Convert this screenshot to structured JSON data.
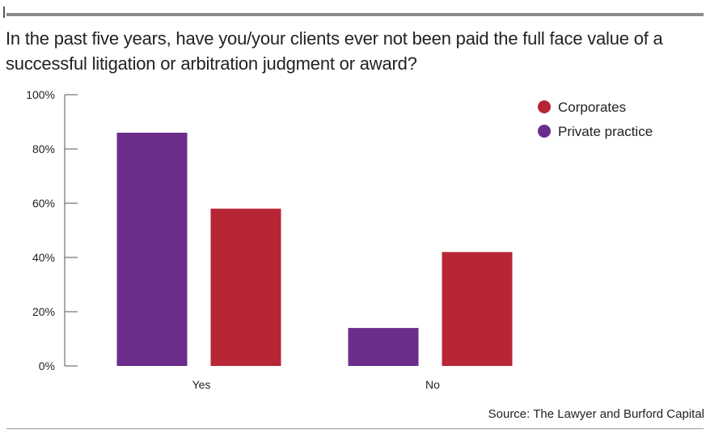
{
  "header": {
    "title": "In the past five years, have you/your clients ever not been paid the full face value of a successful litigation or arbitration judgment or award?"
  },
  "footer": {
    "source": "Source: The Lawyer and Burford Capital"
  },
  "colors": {
    "Corporates": "#b82535",
    "Private practice": "#6b2c8c",
    "axis": "#555555",
    "rule": "#8c8c8c"
  },
  "chart_data": {
    "type": "bar",
    "categories": [
      "Yes",
      "No"
    ],
    "series": [
      {
        "name": "Private practice",
        "values": [
          86,
          14
        ]
      },
      {
        "name": "Corporates",
        "values": [
          58,
          42
        ]
      }
    ],
    "legend": [
      "Corporates",
      "Private practice"
    ],
    "legend_position": "top-right",
    "ylim": [
      0,
      100
    ],
    "yticks": [
      0,
      20,
      40,
      60,
      80,
      100
    ],
    "ytick_labels": [
      "0%",
      "20%",
      "40%",
      "60%",
      "80%",
      "100%"
    ],
    "xlabel": "",
    "ylabel": "",
    "grid": false
  }
}
